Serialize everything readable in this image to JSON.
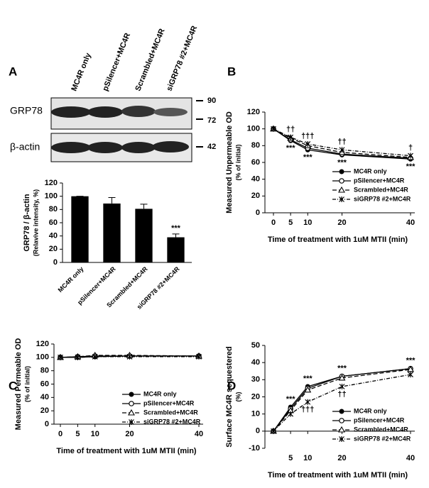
{
  "blot": {
    "label": "A",
    "lanes": [
      "MC4R only",
      "pSilencer+MC4R",
      "Scrambled+MC4R",
      "siGRP78 #2+MC4R"
    ],
    "rows": [
      "GRP78",
      "β-actin"
    ],
    "markers": [
      "90",
      "72",
      "42"
    ]
  },
  "chart_data": [
    {
      "type": "bar",
      "ylabel": [
        "GRP78 / β-actin",
        "(Relavive intensity, %)"
      ],
      "categories": [
        "MC4R only",
        "pSilencer+MC4R",
        "Scrambled+MC4R",
        "siGRP78 #2+MC4R"
      ],
      "values": [
        100,
        89,
        81,
        38
      ],
      "errors": [
        0,
        9,
        7,
        5
      ],
      "value_labels": [
        null,
        null,
        null,
        "***"
      ],
      "color": "#000000",
      "ylim": [
        0,
        120
      ],
      "yticks": [
        0,
        20,
        40,
        60,
        80,
        100,
        120
      ]
    },
    {
      "type": "line",
      "label": "B",
      "xlabel": "Time of treatment with 1uM MTII (min)",
      "ylabel": [
        "Measured Unpermeable OD",
        "(% of initial)"
      ],
      "x": [
        0,
        5,
        10,
        20,
        40
      ],
      "xlim": [
        0,
        40
      ],
      "xticks": [
        0,
        5,
        10,
        20,
        40
      ],
      "ylim": [
        0,
        120
      ],
      "yticks": [
        0,
        20,
        40,
        60,
        80,
        100,
        120
      ],
      "legend": "lower right",
      "series": [
        {
          "name": "MC4R only",
          "color": "#000000",
          "marker": "circle-filled",
          "dash": "solid",
          "values": [
            100,
            86,
            75,
            69,
            64
          ],
          "annotations": [
            null,
            "***",
            "***",
            "***",
            "***"
          ]
        },
        {
          "name": "pSilencer+MC4R",
          "color": "#000000",
          "marker": "circle-open",
          "dash": "solid",
          "values": [
            100,
            87,
            77,
            70,
            65
          ]
        },
        {
          "name": "Scrambled+MC4R",
          "color": "#000000",
          "marker": "triangle-open",
          "dash": "dashed",
          "values": [
            100,
            89,
            80,
            72,
            66
          ]
        },
        {
          "name": "siGRP78 #2+MC4R",
          "color": "#000000",
          "marker": "star",
          "dash": "dashdot",
          "values": [
            100,
            90,
            82,
            75,
            68
          ],
          "annotations": [
            null,
            "††",
            "†††",
            "††",
            "†"
          ]
        }
      ]
    },
    {
      "type": "line",
      "label": "C",
      "xlabel": "Time of treatment with 1uM MTII (min)",
      "ylabel": [
        "Measured Permeable OD",
        "(% of initial)"
      ],
      "x": [
        0,
        5,
        10,
        20,
        40
      ],
      "xlim": [
        0,
        40
      ],
      "xticks": [
        0,
        5,
        10,
        20,
        40
      ],
      "ylim": [
        0,
        120
      ],
      "yticks": [
        0,
        20,
        40,
        60,
        80,
        100,
        120
      ],
      "legend": "lower right",
      "series": [
        {
          "name": "MC4R only",
          "color": "#000000",
          "marker": "circle-filled",
          "dash": "solid",
          "values": [
            100,
            100,
            101,
            102,
            102
          ]
        },
        {
          "name": "pSilencer+MC4R",
          "color": "#000000",
          "marker": "circle-open",
          "dash": "solid",
          "values": [
            100,
            101,
            102,
            102,
            102
          ]
        },
        {
          "name": "Scrambled+MC4R",
          "color": "#000000",
          "marker": "triangle-open",
          "dash": "dashed",
          "values": [
            100,
            101,
            103,
            103,
            102
          ]
        },
        {
          "name": "siGRP78 #2+MC4R",
          "color": "#000000",
          "marker": "star",
          "dash": "dashdot",
          "values": [
            100,
            100,
            101,
            101,
            101
          ]
        }
      ]
    },
    {
      "type": "line",
      "label": "D",
      "xlabel": "Time of treatment with 1uM MTII (min)",
      "ylabel": [
        "Surface MC4R sequestered",
        "(%)"
      ],
      "x": [
        0,
        5,
        10,
        20,
        40
      ],
      "xlim": [
        0,
        40
      ],
      "xticks": [
        5,
        10,
        20,
        40
      ],
      "ylim": [
        -10,
        50
      ],
      "yticks": [
        -10,
        0,
        10,
        20,
        30,
        40,
        50
      ],
      "legend": "lower right",
      "series": [
        {
          "name": "MC4R only",
          "color": "#000000",
          "marker": "circle-filled",
          "dash": "solid",
          "values": [
            0,
            14,
            26,
            32,
            36.5
          ],
          "annotations": [
            null,
            "***",
            "***",
            "***",
            "***"
          ]
        },
        {
          "name": "pSilencer+MC4R",
          "color": "#000000",
          "marker": "circle-open",
          "dash": "solid",
          "values": [
            0,
            13,
            25,
            32,
            36.5
          ]
        },
        {
          "name": "Scrambled+MC4R",
          "color": "#000000",
          "marker": "triangle-open",
          "dash": "dashed",
          "values": [
            0,
            12,
            24,
            31,
            36
          ]
        },
        {
          "name": "siGRP78 #2+MC4R",
          "color": "#000000",
          "marker": "star",
          "dash": "dashdot",
          "values": [
            0,
            10,
            17,
            26,
            33
          ],
          "annotations": [
            null,
            null,
            "†††",
            "††",
            null
          ]
        }
      ]
    }
  ]
}
